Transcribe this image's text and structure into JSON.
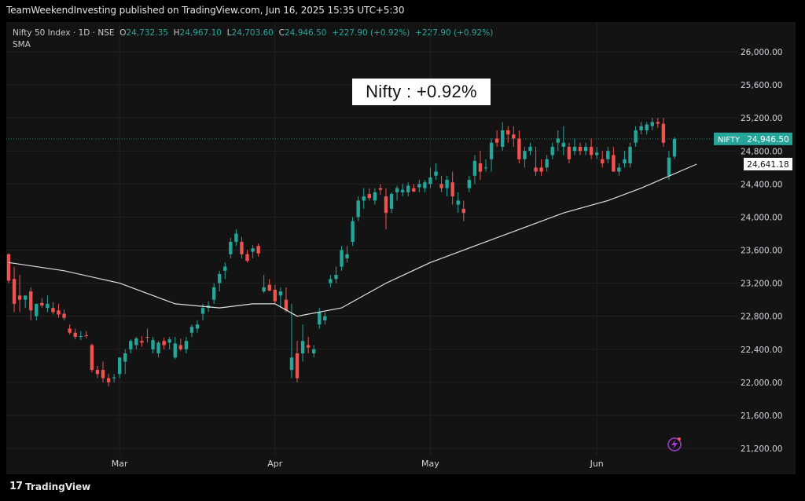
{
  "header": {
    "published": "TeamWeekendInvesting published on TradingView.com, Jun 16, 2025 15:35 UTC+5:30"
  },
  "legend": {
    "symbol": "Nifty 50 Index · 1D · NSE",
    "o_label": "O",
    "o": "24,732.35",
    "h_label": "H",
    "h": "24,967.10",
    "l_label": "L",
    "l": "24,703.60",
    "c_label": "C",
    "c": "24,946.50",
    "change": "+227.90 (+0.92%)",
    "change2": "+227.90 (+0.92%)",
    "sma": "SMA"
  },
  "annotation": "Nifty : +0.92%",
  "footer": {
    "brand": "TradingView",
    "logo": "17"
  },
  "colors": {
    "up": "#26a69a",
    "down": "#ef5350",
    "sma": "#e0e0e0",
    "background": "#131313",
    "grid": "#222222"
  },
  "chart_data": {
    "type": "candlestick",
    "title": "",
    "ylim": [
      20900,
      26300
    ],
    "yticks": [
      21200,
      21600,
      22000,
      22400,
      22800,
      23200,
      23600,
      24000,
      24400,
      24800,
      25200,
      25600,
      26000
    ],
    "ytick_labels": [
      "21,200.00",
      "21,600.00",
      "22,000.00",
      "22,400.00",
      "22,800.00",
      "23,200.00",
      "23,600.00",
      "24,000.00",
      "24,400.00",
      "24,800.00",
      "25,200.00",
      "25,600.00",
      "26,000.00"
    ],
    "xtick_labels": [
      {
        "label": "Mar",
        "index": 20
      },
      {
        "label": "Apr",
        "index": 48
      },
      {
        "label": "May",
        "index": 76
      },
      {
        "label": "Jun",
        "index": 106
      }
    ],
    "last_price_tag": {
      "name": "NIFTY",
      "value": "24,946.50",
      "price": 24946.5
    },
    "sma_tag": {
      "value": "24,641.18",
      "price": 24641.18
    },
    "candles": [
      [
        23550,
        23560,
        23200,
        23230
      ],
      [
        23250,
        23400,
        22850,
        22950
      ],
      [
        23050,
        23300,
        22850,
        23000
      ],
      [
        23000,
        23050,
        22900,
        23050
      ],
      [
        23100,
        23150,
        22750,
        22870
      ],
      [
        22800,
        22950,
        22750,
        22950
      ],
      [
        22960,
        23020,
        22900,
        22930
      ],
      [
        22900,
        23050,
        22850,
        22950
      ],
      [
        22900,
        22970,
        22820,
        22850
      ],
      [
        22870,
        22950,
        22780,
        22820
      ],
      [
        22830,
        22880,
        22750,
        22780
      ],
      [
        22650,
        22700,
        22580,
        22600
      ],
      [
        22600,
        22650,
        22520,
        22550
      ],
      [
        22560,
        22620,
        22510,
        22560
      ],
      [
        22570,
        22620,
        22530,
        22560
      ],
      [
        22450,
        22470,
        22120,
        22150
      ],
      [
        22150,
        22200,
        22050,
        22100
      ],
      [
        22150,
        22250,
        22000,
        22050
      ],
      [
        22050,
        22100,
        21950,
        22000
      ],
      [
        22050,
        22100,
        22000,
        22060
      ],
      [
        22100,
        22300,
        22050,
        22300
      ],
      [
        22250,
        22400,
        22100,
        22350
      ],
      [
        22400,
        22520,
        22350,
        22500
      ],
      [
        22450,
        22550,
        22400,
        22530
      ],
      [
        22500,
        22560,
        22430,
        22480
      ],
      [
        22550,
        22650,
        22480,
        22540
      ],
      [
        22400,
        22550,
        22350,
        22510
      ],
      [
        22350,
        22500,
        22300,
        22480
      ],
      [
        22500,
        22540,
        22400,
        22450
      ],
      [
        22480,
        22550,
        22400,
        22520
      ],
      [
        22300,
        22550,
        22280,
        22470
      ],
      [
        22450,
        22530,
        22380,
        22400
      ],
      [
        22400,
        22550,
        22350,
        22500
      ],
      [
        22600,
        22700,
        22550,
        22670
      ],
      [
        22650,
        22750,
        22600,
        22700
      ],
      [
        22830,
        22950,
        22750,
        22900
      ],
      [
        22900,
        22980,
        22850,
        22930
      ],
      [
        23000,
        23200,
        22950,
        23150
      ],
      [
        23200,
        23350,
        23100,
        23310
      ],
      [
        23350,
        23450,
        23250,
        23400
      ],
      [
        23550,
        23750,
        23500,
        23700
      ],
      [
        23700,
        23850,
        23650,
        23800
      ],
      [
        23700,
        23760,
        23500,
        23550
      ],
      [
        23550,
        23600,
        23450,
        23470
      ],
      [
        23580,
        23660,
        23500,
        23620
      ],
      [
        23650,
        23680,
        23520,
        23560
      ],
      [
        23100,
        23300,
        23080,
        23150
      ],
      [
        23180,
        23250,
        23100,
        23110
      ],
      [
        23120,
        23180,
        22950,
        22980
      ],
      [
        23050,
        23150,
        22900,
        23100
      ],
      [
        23000,
        23150,
        22850,
        22870
      ],
      [
        22150,
        22950,
        22050,
        22300
      ],
      [
        22350,
        22500,
        22000,
        22050
      ],
      [
        22350,
        22700,
        22250,
        22500
      ],
      [
        22450,
        22550,
        22350,
        22420
      ],
      [
        22350,
        22450,
        22300,
        22400
      ],
      [
        22700,
        22900,
        22650,
        22850
      ],
      [
        22750,
        22850,
        22700,
        22800
      ],
      [
        23200,
        23300,
        23150,
        23250
      ],
      [
        23250,
        23400,
        23200,
        23300
      ],
      [
        23400,
        23650,
        23350,
        23600
      ],
      [
        23500,
        23650,
        23450,
        23550
      ],
      [
        23700,
        24000,
        23650,
        23950
      ],
      [
        24000,
        24250,
        23950,
        24200
      ],
      [
        24200,
        24350,
        24100,
        24250
      ],
      [
        24280,
        24350,
        24200,
        24230
      ],
      [
        24200,
        24350,
        24150,
        24300
      ],
      [
        24350,
        24400,
        24270,
        24330
      ],
      [
        24250,
        24350,
        23850,
        24050
      ],
      [
        24100,
        24300,
        24050,
        24280
      ],
      [
        24300,
        24380,
        24200,
        24350
      ],
      [
        24300,
        24400,
        24250,
        24330
      ],
      [
        24300,
        24420,
        24250,
        24380
      ],
      [
        24350,
        24400,
        24300,
        24310
      ],
      [
        24360,
        24450,
        24300,
        24400
      ],
      [
        24350,
        24450,
        24300,
        24420
      ],
      [
        24400,
        24600,
        24350,
        24480
      ],
      [
        24500,
        24650,
        24450,
        24550
      ],
      [
        24400,
        24500,
        24300,
        24350
      ],
      [
        24350,
        24500,
        24250,
        24450
      ],
      [
        24420,
        24550,
        24150,
        24250
      ],
      [
        24150,
        24300,
        24050,
        24200
      ],
      [
        24100,
        24200,
        23950,
        24050
      ],
      [
        24350,
        24500,
        24300,
        24450
      ],
      [
        24500,
        24750,
        24400,
        24680
      ],
      [
        24650,
        24800,
        24450,
        24550
      ],
      [
        24600,
        24700,
        24550,
        24600
      ],
      [
        24700,
        24950,
        24550,
        24900
      ],
      [
        24950,
        25050,
        24850,
        24900
      ],
      [
        24850,
        25150,
        24800,
        25050
      ],
      [
        25050,
        25100,
        24900,
        25000
      ],
      [
        25000,
        25100,
        24850,
        24950
      ],
      [
        24950,
        25050,
        24650,
        24700
      ],
      [
        24700,
        24850,
        24600,
        24800
      ],
      [
        24800,
        24900,
        24750,
        24850
      ],
      [
        24600,
        24850,
        24500,
        24550
      ],
      [
        24600,
        24700,
        24500,
        24550
      ],
      [
        24600,
        24750,
        24550,
        24700
      ],
      [
        24750,
        24900,
        24700,
        24850
      ],
      [
        24900,
        25050,
        24800,
        24950
      ],
      [
        24850,
        25100,
        24750,
        24900
      ],
      [
        24850,
        24900,
        24650,
        24700
      ],
      [
        24800,
        24950,
        24750,
        24850
      ],
      [
        24850,
        24900,
        24750,
        24800
      ],
      [
        24800,
        24900,
        24750,
        24850
      ],
      [
        24850,
        24950,
        24700,
        24750
      ],
      [
        24750,
        24850,
        24700,
        24780
      ],
      [
        24700,
        24800,
        24600,
        24650
      ],
      [
        24700,
        24850,
        24650,
        24800
      ],
      [
        24750,
        24850,
        24550,
        24550
      ],
      [
        24550,
        24650,
        24500,
        24600
      ],
      [
        24650,
        24800,
        24600,
        24700
      ],
      [
        24650,
        24900,
        24600,
        24850
      ],
      [
        24900,
        25100,
        24850,
        25050
      ],
      [
        25050,
        25150,
        25000,
        25100
      ],
      [
        25050,
        25150,
        25000,
        25120
      ],
      [
        25100,
        25200,
        25050,
        25150
      ],
      [
        25150,
        25200,
        25080,
        25130
      ],
      [
        25130,
        25200,
        24850,
        24900
      ],
      [
        24500,
        24800,
        24450,
        24720
      ],
      [
        24732.35,
        24967.1,
        24703.6,
        24946.5
      ]
    ],
    "sma_start": [
      [
        0,
        23450
      ],
      [
        10,
        23350
      ],
      [
        20,
        23200
      ],
      [
        30,
        22950
      ],
      [
        38,
        22900
      ],
      [
        44,
        22950
      ],
      [
        48,
        22950
      ],
      [
        52,
        22800
      ],
      [
        60,
        22900
      ],
      [
        68,
        23200
      ],
      [
        76,
        23450
      ],
      [
        84,
        23650
      ],
      [
        92,
        23850
      ],
      [
        100,
        24050
      ],
      [
        108,
        24200
      ],
      [
        114,
        24350
      ],
      [
        124,
        24641.18
      ]
    ]
  }
}
